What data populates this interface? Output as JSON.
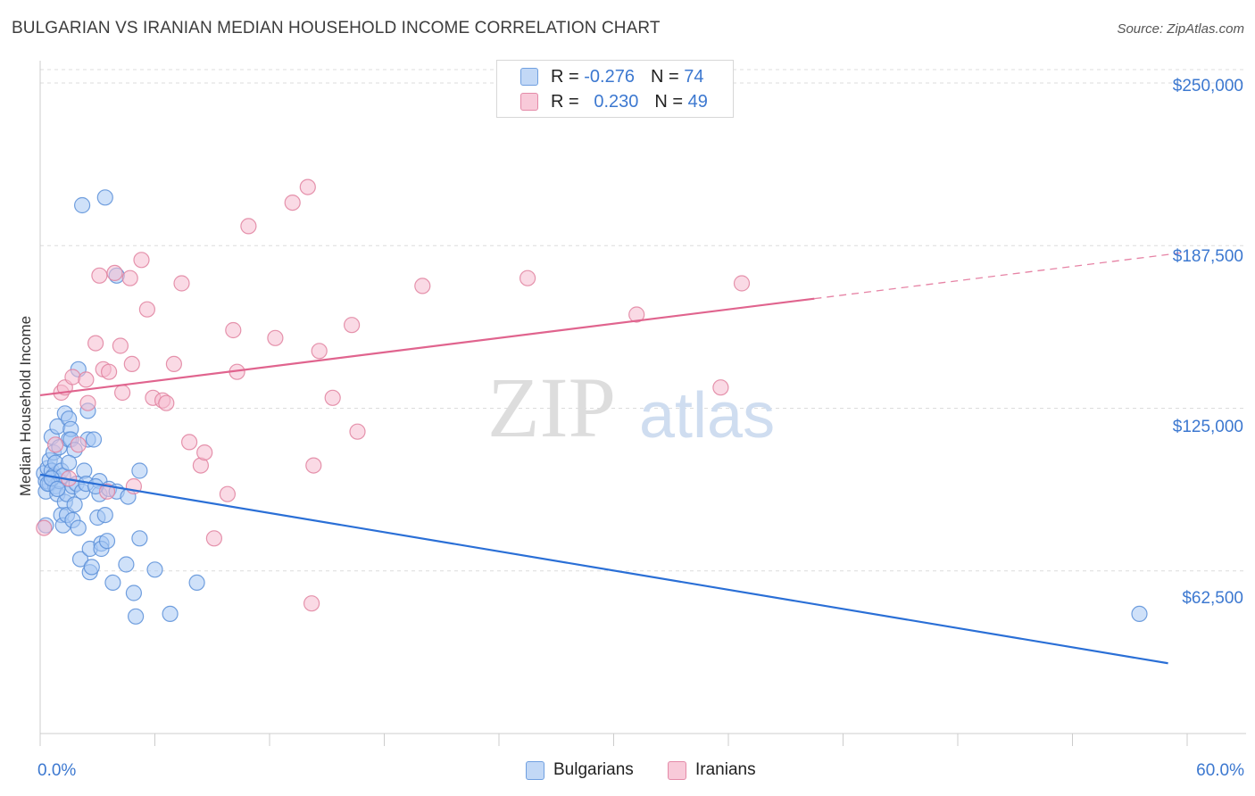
{
  "title": "BULGARIAN VS IRANIAN MEDIAN HOUSEHOLD INCOME CORRELATION CHART",
  "source": "Source: ZipAtlas.com",
  "watermark": {
    "zip": "ZIP",
    "atlas": "atlas"
  },
  "legend": {
    "rows": [
      {
        "r_label": "R =",
        "r_value": "-0.276",
        "n_label": "N =",
        "n_value": "74"
      },
      {
        "r_label": "R =",
        "r_value": "0.230",
        "n_label": "N =",
        "n_value": "49"
      }
    ]
  },
  "colors": {
    "blue_fill": "#a8c8f4",
    "blue_edge": "#5b8fd8",
    "blue_line": "#2a6fd6",
    "pink_fill": "#f6bcd0",
    "pink_edge": "#e0819f",
    "pink_line": "#e0648e",
    "axis_text": "#3c78d0",
    "grid": "#dcdcdc"
  },
  "chart_data": {
    "type": "scatter",
    "title": "BULGARIAN VS IRANIAN MEDIAN HOUSEHOLD INCOME CORRELATION CHART",
    "xlabel": "",
    "ylabel": "Median Household Income",
    "xlim": [
      0,
      60
    ],
    "ylim": [
      0,
      262000
    ],
    "x_tick_labels": [
      "0.0%",
      "60.0%"
    ],
    "y_ticks": [
      {
        "value": 62500,
        "label": "$62,500"
      },
      {
        "value": 125000,
        "label": "$125,000"
      },
      {
        "value": 187500,
        "label": "$187,500"
      },
      {
        "value": 250000,
        "label": "$250,000"
      }
    ],
    "series": [
      {
        "name": "Bulgarians",
        "r": -0.276,
        "n": 74,
        "trend": {
          "x": [
            0,
            59
          ],
          "y": [
            99500,
            27000
          ],
          "solid_until": 59
        },
        "points": [
          [
            0.2,
            100000
          ],
          [
            0.3,
            93000
          ],
          [
            0.3,
            97000
          ],
          [
            0.4,
            102000
          ],
          [
            0.5,
            96000
          ],
          [
            0.5,
            105000
          ],
          [
            0.6,
            101000
          ],
          [
            0.6,
            114000
          ],
          [
            0.7,
            99000
          ],
          [
            0.7,
            108000
          ],
          [
            0.8,
            95000
          ],
          [
            0.8,
            104000
          ],
          [
            0.9,
            92000
          ],
          [
            0.9,
            118000
          ],
          [
            1.0,
            110000
          ],
          [
            1.0,
            97000
          ],
          [
            1.1,
            101000
          ],
          [
            1.1,
            84000
          ],
          [
            1.2,
            99000
          ],
          [
            1.2,
            80000
          ],
          [
            1.3,
            123000
          ],
          [
            1.3,
            89000
          ],
          [
            1.4,
            92000
          ],
          [
            1.4,
            84000
          ],
          [
            1.5,
            121000
          ],
          [
            1.5,
            113000
          ],
          [
            1.6,
            117000
          ],
          [
            1.6,
            113000
          ],
          [
            1.7,
            95000
          ],
          [
            1.7,
            82000
          ],
          [
            1.8,
            88000
          ],
          [
            1.9,
            96000
          ],
          [
            2.0,
            79000
          ],
          [
            2.0,
            140000
          ],
          [
            2.1,
            67000
          ],
          [
            2.2,
            93000
          ],
          [
            2.2,
            203000
          ],
          [
            2.3,
            101000
          ],
          [
            2.4,
            96000
          ],
          [
            2.5,
            124000
          ],
          [
            2.5,
            113000
          ],
          [
            2.6,
            71000
          ],
          [
            2.6,
            62000
          ],
          [
            2.7,
            64000
          ],
          [
            2.8,
            113000
          ],
          [
            3.0,
            83000
          ],
          [
            3.1,
            97000
          ],
          [
            3.1,
            92000
          ],
          [
            3.2,
            73000
          ],
          [
            3.2,
            71000
          ],
          [
            3.4,
            84000
          ],
          [
            3.4,
            206000
          ],
          [
            3.5,
            74000
          ],
          [
            3.6,
            94000
          ],
          [
            3.8,
            58000
          ],
          [
            4.0,
            93000
          ],
          [
            4.0,
            176000
          ],
          [
            4.5,
            65000
          ],
          [
            4.6,
            91000
          ],
          [
            4.9,
            54000
          ],
          [
            5.0,
            45000
          ],
          [
            5.2,
            101000
          ],
          [
            5.2,
            75000
          ],
          [
            6.0,
            63000
          ],
          [
            6.8,
            46000
          ],
          [
            8.2,
            58000
          ],
          [
            0.4,
            96000
          ],
          [
            0.6,
            98000
          ],
          [
            0.9,
            94000
          ],
          [
            1.8,
            109000
          ],
          [
            2.9,
            95000
          ],
          [
            1.5,
            104000
          ],
          [
            0.3,
            80000
          ],
          [
            57.5,
            46000
          ]
        ]
      },
      {
        "name": "Iranians",
        "r": 0.23,
        "n": 49,
        "trend": {
          "x": [
            0,
            60
          ],
          "y": [
            130000,
            185000
          ],
          "solid_until": 40.5
        },
        "points": [
          [
            0.2,
            79000
          ],
          [
            0.8,
            111000
          ],
          [
            1.1,
            131000
          ],
          [
            1.3,
            133000
          ],
          [
            1.5,
            98000
          ],
          [
            1.7,
            137000
          ],
          [
            2.0,
            111000
          ],
          [
            2.4,
            136000
          ],
          [
            2.5,
            127000
          ],
          [
            2.9,
            150000
          ],
          [
            3.1,
            176000
          ],
          [
            3.3,
            140000
          ],
          [
            3.5,
            93000
          ],
          [
            3.6,
            139000
          ],
          [
            3.9,
            177000
          ],
          [
            4.2,
            149000
          ],
          [
            4.3,
            131000
          ],
          [
            4.7,
            175000
          ],
          [
            4.8,
            142000
          ],
          [
            4.9,
            95000
          ],
          [
            5.3,
            182000
          ],
          [
            5.6,
            163000
          ],
          [
            5.9,
            129000
          ],
          [
            6.4,
            128000
          ],
          [
            6.6,
            127000
          ],
          [
            7.0,
            142000
          ],
          [
            7.4,
            173000
          ],
          [
            7.8,
            112000
          ],
          [
            8.4,
            103000
          ],
          [
            8.6,
            108000
          ],
          [
            9.1,
            75000
          ],
          [
            9.8,
            92000
          ],
          [
            10.1,
            155000
          ],
          [
            10.3,
            139000
          ],
          [
            10.9,
            195000
          ],
          [
            12.3,
            152000
          ],
          [
            13.2,
            204000
          ],
          [
            14.0,
            210000
          ],
          [
            14.2,
            50000
          ],
          [
            14.3,
            103000
          ],
          [
            14.6,
            147000
          ],
          [
            15.3,
            129000
          ],
          [
            16.3,
            157000
          ],
          [
            16.6,
            116000
          ],
          [
            20.0,
            172000
          ],
          [
            25.5,
            175000
          ],
          [
            31.2,
            161000
          ],
          [
            35.6,
            133000
          ],
          [
            36.7,
            173000
          ]
        ]
      }
    ]
  },
  "bottom_legend": {
    "blue_label": "Bulgarians",
    "pink_label": "Iranians"
  }
}
